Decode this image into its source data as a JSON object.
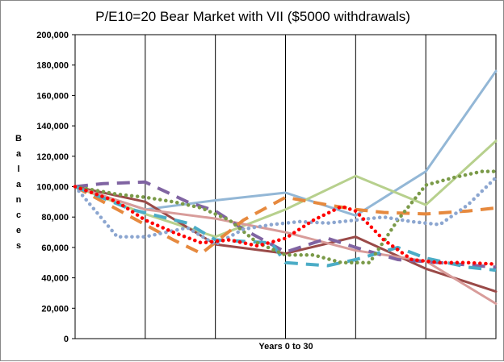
{
  "chart_data": {
    "type": "line",
    "title": "P/E10=20 Bear Market with VII ($5000 withdrawals)",
    "xlabel": "Years 0 to 30",
    "ylabel": "Balances",
    "ylim": [
      0,
      200000
    ],
    "xlim": [
      0,
      30
    ],
    "y_ticks": [
      "0",
      "20,000",
      "40,000",
      "60,000",
      "80,000",
      "100,000",
      "120,000",
      "140,000",
      "160,000",
      "180,000",
      "200,000"
    ],
    "grid": "vertical",
    "legend": "none",
    "series": [
      {
        "color": "#93B7D6",
        "dash": "solid",
        "x": [
          0,
          5,
          10,
          15,
          20,
          25,
          30
        ],
        "values": [
          100000,
          85000,
          91000,
          96000,
          81000,
          110000,
          176000
        ]
      },
      {
        "color": "#B7D08D",
        "dash": "solid",
        "x": [
          0,
          5,
          10,
          15,
          20,
          25,
          30
        ],
        "values": [
          100000,
          82000,
          67000,
          85000,
          107000,
          88000,
          130000
        ]
      },
      {
        "color": "#9A4A48",
        "dash": "solid",
        "x": [
          0,
          5,
          10,
          15,
          20,
          25,
          30
        ],
        "values": [
          100000,
          90000,
          62000,
          56000,
          67000,
          46000,
          31000
        ]
      },
      {
        "color": "#D89C9A",
        "dash": "solid",
        "x": [
          0,
          5,
          10,
          15,
          20,
          25,
          30
        ],
        "values": [
          100000,
          85000,
          79000,
          70000,
          58000,
          51000,
          23000
        ]
      },
      {
        "color": "#8064A2",
        "dash": "long-dash",
        "x": [
          0,
          2,
          5,
          8,
          10,
          12,
          15,
          18,
          20,
          23,
          26,
          30
        ],
        "values": [
          100000,
          102000,
          103000,
          90000,
          84000,
          72000,
          57000,
          66000,
          60000,
          52000,
          50000,
          47000
        ]
      },
      {
        "color": "#E6893E",
        "dash": "long-dash",
        "x": [
          0,
          4,
          7,
          9,
          12,
          15,
          18,
          20,
          22,
          25,
          28,
          30
        ],
        "values": [
          100000,
          80000,
          65000,
          56000,
          78000,
          93000,
          88000,
          85000,
          83000,
          82000,
          84000,
          86000
        ]
      },
      {
        "color": "#4BACC6",
        "dash": "long-dash",
        "x": [
          0,
          4,
          8,
          10,
          14,
          15,
          18,
          20,
          23,
          25,
          28,
          30
        ],
        "values": [
          100000,
          85000,
          76000,
          65000,
          63000,
          50000,
          48000,
          52000,
          60000,
          53000,
          47000,
          45000
        ]
      },
      {
        "color": "#7A9A48",
        "dash": "dotted",
        "x": [
          0,
          3,
          5,
          7,
          9,
          11,
          13,
          15,
          17,
          19,
          21,
          23,
          25,
          27,
          29,
          30
        ],
        "values": [
          100000,
          95000,
          93000,
          90000,
          86000,
          78000,
          63000,
          55000,
          55000,
          50000,
          50000,
          78000,
          101000,
          106000,
          110000,
          110000
        ]
      },
      {
        "color": "#8CA6D0",
        "dash": "dotted",
        "x": [
          0,
          3,
          5,
          8,
          10,
          12,
          14,
          16,
          18,
          20,
          22,
          24,
          26,
          28,
          30
        ],
        "values": [
          100000,
          67000,
          67000,
          73000,
          62000,
          72000,
          75000,
          77000,
          76000,
          78000,
          80000,
          77000,
          75000,
          88000,
          106000
        ]
      },
      {
        "color": "#FF0000",
        "dash": "dotted",
        "x": [
          0,
          3,
          5,
          7,
          9,
          11,
          13,
          15,
          17,
          19,
          20,
          22,
          24,
          26,
          28,
          30
        ],
        "values": [
          100000,
          90000,
          78000,
          70000,
          63000,
          65000,
          61000,
          66000,
          78000,
          87000,
          84000,
          65000,
          52000,
          50000,
          50000,
          49000
        ]
      }
    ]
  }
}
